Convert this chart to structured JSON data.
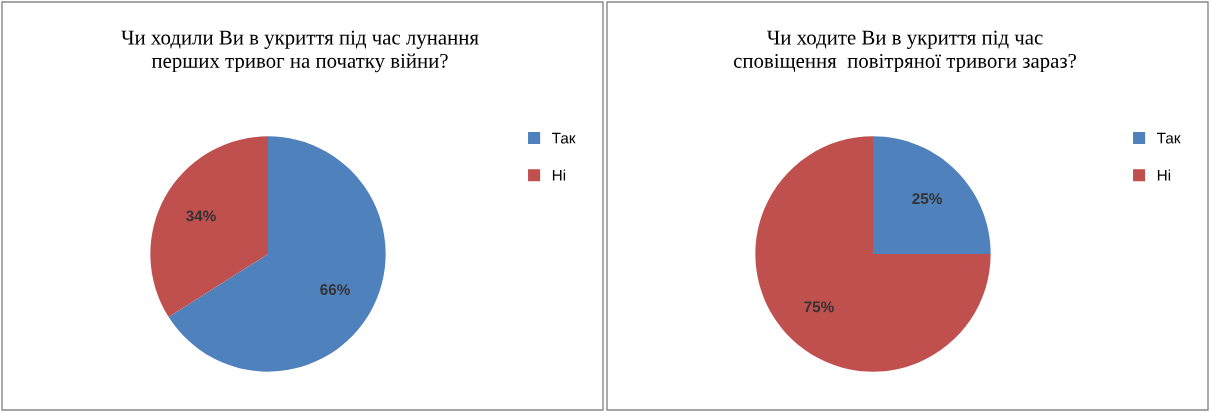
{
  "chart_data": [
    {
      "type": "pie",
      "title": "Чи ходили Ви в укриття під час лунання\nперших тривог на початку війни?",
      "categories": [
        "Так",
        "Ні"
      ],
      "values": [
        66,
        34
      ],
      "value_labels": [
        "66%",
        "34%"
      ],
      "colors": [
        "#4f81bd",
        "#c0504d"
      ],
      "legend": "right"
    },
    {
      "type": "pie",
      "title": "Чи ходите Ви в укриття під час\nсповіщення  повітряної тривоги зараз?",
      "categories": [
        "Так",
        "Ні"
      ],
      "values": [
        25,
        75
      ],
      "value_labels": [
        "25%",
        "75%"
      ],
      "colors": [
        "#4f81bd",
        "#c0504d"
      ],
      "legend": "right"
    }
  ]
}
